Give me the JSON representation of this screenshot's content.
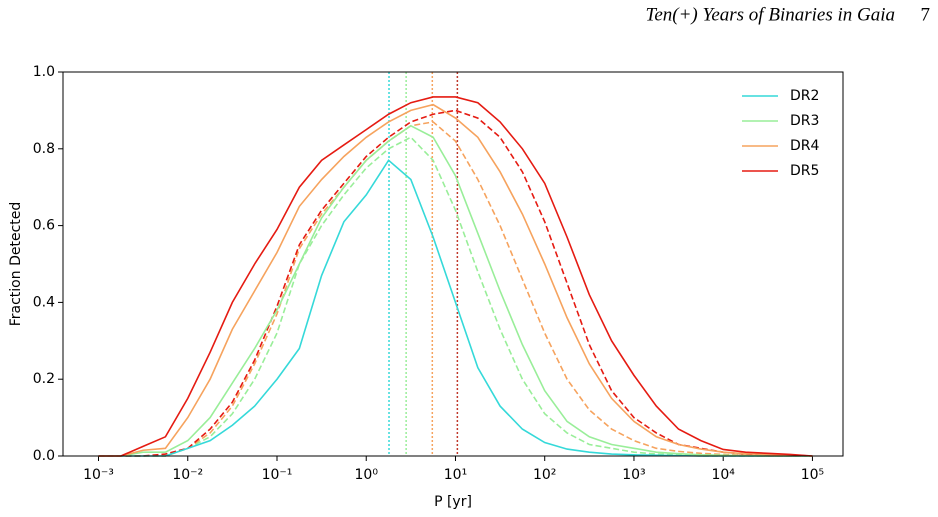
{
  "page_header": {
    "title": "Ten(+) Years of Binaries in Gaia",
    "page_number": "7"
  },
  "chart_data": {
    "type": "line",
    "xlabel": "P [yr]",
    "ylabel": "Fraction Detected",
    "xscale": "log",
    "xlim": [
      0.0004,
      220000
    ],
    "xticks": [
      {
        "value": 0.001,
        "label": "10⁻³"
      },
      {
        "value": 0.01,
        "label": "10⁻²"
      },
      {
        "value": 0.1,
        "label": "10⁻¹"
      },
      {
        "value": 1,
        "label": "10⁰"
      },
      {
        "value": 10,
        "label": "10¹"
      },
      {
        "value": 100,
        "label": "10²"
      },
      {
        "value": 1000,
        "label": "10³"
      },
      {
        "value": 10000,
        "label": "10⁴"
      },
      {
        "value": 100000,
        "label": "10⁵"
      }
    ],
    "ylim": [
      0,
      1
    ],
    "yticks": [
      {
        "value": 0,
        "label": "0.0"
      },
      0.2,
      0.4,
      0.6,
      0.8,
      {
        "value": 1,
        "label": "1.0"
      }
    ],
    "legend": "upper right",
    "x": [
      0.001,
      0.00178,
      0.00316,
      0.00562,
      0.01,
      0.0178,
      0.0316,
      0.0562,
      0.1,
      0.178,
      0.316,
      0.562,
      1,
      1.78,
      3.16,
      5.62,
      10,
      17.8,
      31.6,
      56.2,
      100,
      178,
      316,
      562,
      1000,
      1780,
      3160,
      5620,
      10000,
      17800,
      31600,
      56200,
      100000
    ],
    "series": [
      {
        "name": "DR2",
        "color": "#35d9d9",
        "values": [
          0,
          0,
          0,
          0,
          0.02,
          0.04,
          0.08,
          0.13,
          0.2,
          0.28,
          0.47,
          0.61,
          0.68,
          0.77,
          0.72,
          0.57,
          0.4,
          0.23,
          0.13,
          0.07,
          0.035,
          0.018,
          0.01,
          0.005,
          0.003,
          0.002,
          0.001,
          0,
          0,
          0,
          0,
          0,
          0
        ]
      },
      {
        "name": "DR3",
        "color": "#99ee99",
        "values": [
          0,
          0,
          0.01,
          0.01,
          0.04,
          0.1,
          0.19,
          0.28,
          0.38,
          0.5,
          0.62,
          0.7,
          0.77,
          0.82,
          0.86,
          0.83,
          0.73,
          0.58,
          0.43,
          0.29,
          0.17,
          0.09,
          0.05,
          0.03,
          0.02,
          0.01,
          0.006,
          0.003,
          0.002,
          0.001,
          0,
          0,
          0
        ]
      },
      {
        "name": "DR4",
        "color": "#f6a35e",
        "values": [
          0,
          0,
          0.015,
          0.02,
          0.1,
          0.2,
          0.33,
          0.43,
          0.53,
          0.65,
          0.72,
          0.78,
          0.83,
          0.87,
          0.9,
          0.915,
          0.88,
          0.83,
          0.74,
          0.63,
          0.5,
          0.36,
          0.24,
          0.15,
          0.09,
          0.05,
          0.03,
          0.018,
          0.01,
          0.006,
          0.004,
          0.002,
          0
        ]
      },
      {
        "name": "DR5",
        "color": "#e51b12",
        "values": [
          0,
          0,
          0.025,
          0.05,
          0.15,
          0.27,
          0.4,
          0.5,
          0.59,
          0.7,
          0.77,
          0.81,
          0.85,
          0.89,
          0.92,
          0.935,
          0.935,
          0.92,
          0.87,
          0.8,
          0.71,
          0.57,
          0.42,
          0.3,
          0.21,
          0.13,
          0.07,
          0.04,
          0.017,
          0.01,
          0.007,
          0.004,
          0
        ]
      }
    ],
    "dashed_series": [
      {
        "color": "#99ee99",
        "values": [
          0,
          0,
          0,
          0,
          0.02,
          0.05,
          0.11,
          0.2,
          0.32,
          0.5,
          0.6,
          0.68,
          0.75,
          0.8,
          0.83,
          0.77,
          0.64,
          0.48,
          0.33,
          0.2,
          0.11,
          0.06,
          0.03,
          0.02,
          0.01,
          0.005,
          0.003,
          0,
          0,
          0,
          0,
          0,
          0
        ]
      },
      {
        "color": "#f6a35e",
        "values": [
          0,
          0,
          0,
          0,
          0.02,
          0.06,
          0.13,
          0.24,
          0.37,
          0.54,
          0.63,
          0.7,
          0.77,
          0.82,
          0.86,
          0.87,
          0.82,
          0.72,
          0.6,
          0.46,
          0.32,
          0.2,
          0.12,
          0.07,
          0.04,
          0.02,
          0.012,
          0.007,
          0.004,
          0.002,
          0,
          0,
          0
        ]
      },
      {
        "color": "#e51b12",
        "values": [
          0,
          0,
          0,
          0.005,
          0.02,
          0.07,
          0.14,
          0.25,
          0.39,
          0.55,
          0.64,
          0.71,
          0.78,
          0.83,
          0.87,
          0.89,
          0.9,
          0.88,
          0.83,
          0.74,
          0.61,
          0.45,
          0.29,
          0.17,
          0.1,
          0.06,
          0.03,
          0.02,
          0.01,
          0.005,
          0.003,
          0.002,
          0
        ]
      }
    ],
    "vlines": [
      {
        "x": 1.8,
        "color": "#35d9d9"
      },
      {
        "x": 2.8,
        "color": "#99ee99"
      },
      {
        "x": 5.5,
        "color": "#f6a35e"
      },
      {
        "x": 10.5,
        "color": "#c0392b"
      }
    ]
  }
}
